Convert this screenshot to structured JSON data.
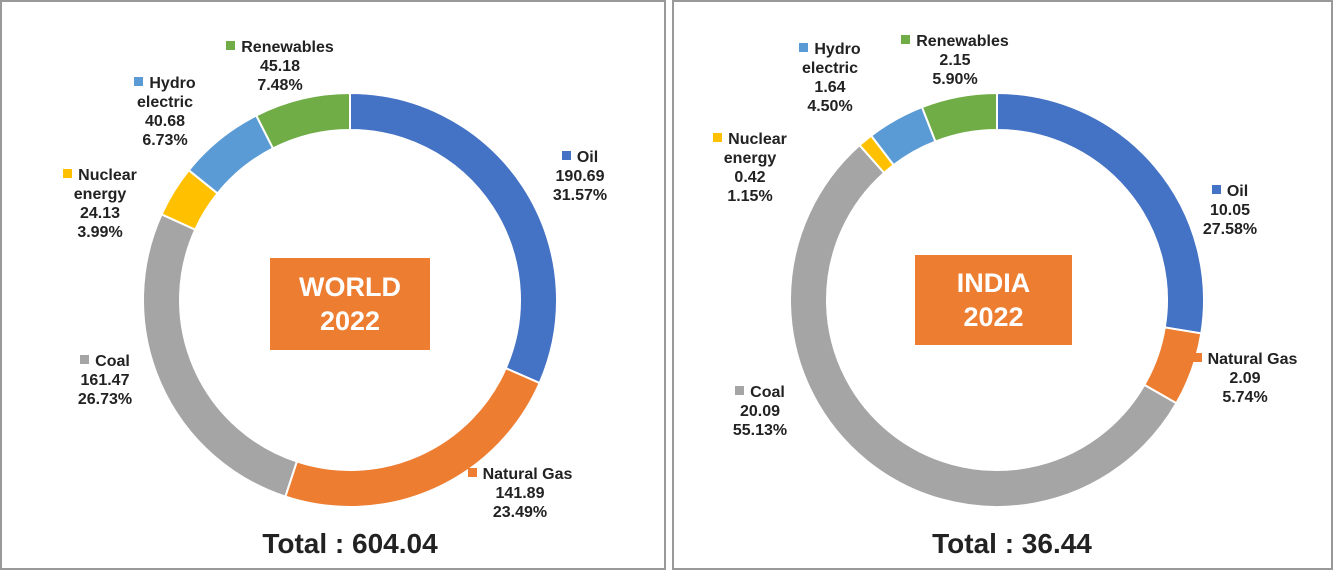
{
  "chart_data": [
    {
      "type": "pie",
      "center_label": "WORLD 2022",
      "total_label": "Total : 604.04",
      "categories": [
        "Oil",
        "Natural Gas",
        "Coal",
        "Nuclear energy",
        "Hydro electric",
        "Renewables"
      ],
      "values": [
        190.69,
        141.89,
        161.47,
        24.13,
        40.68,
        45.18
      ],
      "percent_labels": [
        "31.57%",
        "23.49%",
        "26.73%",
        "3.99%",
        "6.73%",
        "7.48%"
      ],
      "colors": [
        "#4472c4",
        "#ed7d31",
        "#a5a5a5",
        "#ffc000",
        "#5b9bd5",
        "#70ad47"
      ]
    },
    {
      "type": "pie",
      "center_label": "INDIA 2022",
      "total_label": "Total : 36.44",
      "categories": [
        "Oil",
        "Natural Gas",
        "Coal",
        "Nuclear energy",
        "Hydro electric",
        "Renewables"
      ],
      "values": [
        10.05,
        2.09,
        20.09,
        0.42,
        1.64,
        2.15
      ],
      "percent_labels": [
        "27.58%",
        "5.74%",
        "55.13%",
        "1.15%",
        "4.50%",
        "5.90%"
      ],
      "colors": [
        "#4472c4",
        "#ed7d31",
        "#a5a5a5",
        "#ffc000",
        "#5b9bd5",
        "#70ad47"
      ]
    }
  ]
}
